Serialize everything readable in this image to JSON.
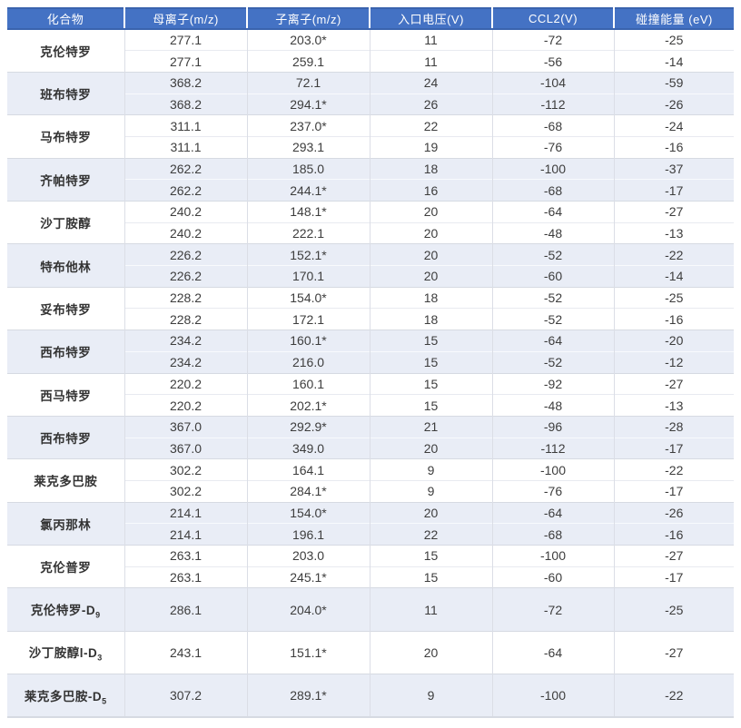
{
  "colors": {
    "header_background": "#4472C4",
    "header_text": "#FFFFFF",
    "band_background": "#E9EDF6",
    "grid_line": "#D6DAE2",
    "body_text": "#3D3D3D"
  },
  "table": {
    "headers": [
      "化合物",
      "母离子(m/z)",
      "子离子(m/z)",
      "入口电压(V)",
      "CCL2(V)",
      "碰撞能量 (eV)"
    ],
    "groups": [
      {
        "compound": "克伦特罗",
        "compound_sub": "",
        "shaded": false,
        "rows": [
          [
            "277.1",
            "203.0*",
            "11",
            "-72",
            "-25"
          ],
          [
            "277.1",
            "259.1",
            "11",
            "-56",
            "-14"
          ]
        ]
      },
      {
        "compound": "班布特罗",
        "compound_sub": "",
        "shaded": true,
        "rows": [
          [
            "368.2",
            "72.1",
            "24",
            "-104",
            "-59"
          ],
          [
            "368.2",
            "294.1*",
            "26",
            "-112",
            "-26"
          ]
        ]
      },
      {
        "compound": "马布特罗",
        "compound_sub": "",
        "shaded": false,
        "rows": [
          [
            "311.1",
            "237.0*",
            "22",
            "-68",
            "-24"
          ],
          [
            "311.1",
            "293.1",
            "19",
            "-76",
            "-16"
          ]
        ]
      },
      {
        "compound": "齐帕特罗",
        "compound_sub": "",
        "shaded": true,
        "rows": [
          [
            "262.2",
            "185.0",
            "18",
            "-100",
            "-37"
          ],
          [
            "262.2",
            "244.1*",
            "16",
            "-68",
            "-17"
          ]
        ]
      },
      {
        "compound": "沙丁胺醇",
        "compound_sub": "",
        "shaded": false,
        "rows": [
          [
            "240.2",
            "148.1*",
            "20",
            "-64",
            "-27"
          ],
          [
            "240.2",
            "222.1",
            "20",
            "-48",
            "-13"
          ]
        ]
      },
      {
        "compound": "特布他林",
        "compound_sub": "",
        "shaded": true,
        "rows": [
          [
            "226.2",
            "152.1*",
            "20",
            "-52",
            "-22"
          ],
          [
            "226.2",
            "170.1",
            "20",
            "-60",
            "-14"
          ]
        ]
      },
      {
        "compound": "妥布特罗",
        "compound_sub": "",
        "shaded": false,
        "rows": [
          [
            "228.2",
            "154.0*",
            "18",
            "-52",
            "-25"
          ],
          [
            "228.2",
            "172.1",
            "18",
            "-52",
            "-16"
          ]
        ]
      },
      {
        "compound": "西布特罗",
        "compound_sub": "",
        "shaded": true,
        "rows": [
          [
            "234.2",
            "160.1*",
            "15",
            "-64",
            "-20"
          ],
          [
            "234.2",
            "216.0",
            "15",
            "-52",
            "-12"
          ]
        ]
      },
      {
        "compound": "西马特罗",
        "compound_sub": "",
        "shaded": false,
        "rows": [
          [
            "220.2",
            "160.1",
            "15",
            "-92",
            "-27"
          ],
          [
            "220.2",
            "202.1*",
            "15",
            "-48",
            "-13"
          ]
        ]
      },
      {
        "compound": "西布特罗",
        "compound_sub": "",
        "shaded": true,
        "rows": [
          [
            "367.0",
            "292.9*",
            "21",
            "-96",
            "-28"
          ],
          [
            "367.0",
            "349.0",
            "20",
            "-112",
            "-17"
          ]
        ]
      },
      {
        "compound": "莱克多巴胺",
        "compound_sub": "",
        "shaded": false,
        "rows": [
          [
            "302.2",
            "164.1",
            "9",
            "-100",
            "-22"
          ],
          [
            "302.2",
            "284.1*",
            "9",
            "-76",
            "-17"
          ]
        ]
      },
      {
        "compound": "氯丙那林",
        "compound_sub": "",
        "shaded": true,
        "rows": [
          [
            "214.1",
            "154.0*",
            "20",
            "-64",
            "-26"
          ],
          [
            "214.1",
            "196.1",
            "22",
            "-68",
            "-16"
          ]
        ]
      },
      {
        "compound": "克伦普罗",
        "compound_sub": "",
        "shaded": false,
        "rows": [
          [
            "263.1",
            "203.0",
            "15",
            "-100",
            "-27"
          ],
          [
            "263.1",
            "245.1*",
            "15",
            "-60",
            "-17"
          ]
        ]
      },
      {
        "compound": "克伦特罗-D",
        "compound_sub": "9",
        "shaded": true,
        "rows": [
          [
            "286.1",
            "204.0*",
            "11",
            "-72",
            "-25"
          ]
        ]
      },
      {
        "compound": "沙丁胺醇l-D",
        "compound_sub": "3",
        "shaded": false,
        "rows": [
          [
            "243.1",
            "151.1*",
            "20",
            "-64",
            "-27"
          ]
        ]
      },
      {
        "compound": "莱克多巴胺-D",
        "compound_sub": "5",
        "shaded": true,
        "rows": [
          [
            "307.2",
            "289.1*",
            "9",
            "-100",
            "-22"
          ]
        ]
      }
    ]
  }
}
